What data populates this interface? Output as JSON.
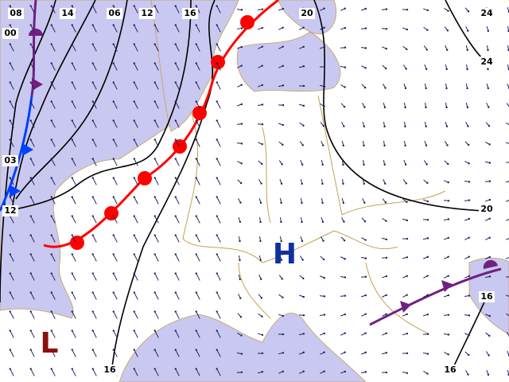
{
  "pressure_centers": [
    {
      "label": "H"
    },
    {
      "label": "L"
    }
  ],
  "isobar_labels": [
    "08",
    "14",
    "06",
    "12",
    "16",
    "20",
    "24",
    "24",
    "20",
    "16",
    "16",
    "16",
    "00",
    "03",
    "12"
  ]
}
